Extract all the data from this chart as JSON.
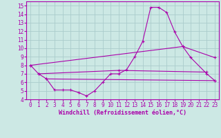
{
  "xlabel": "Windchill (Refroidissement éolien,°C)",
  "bg_color": "#cce8e4",
  "grid_color": "#aacccc",
  "line_color": "#aa00aa",
  "ylim": [
    4,
    15
  ],
  "yticks": [
    4,
    5,
    6,
    7,
    8,
    9,
    10,
    11,
    12,
    13,
    14,
    15
  ],
  "xticks": [
    0,
    1,
    2,
    3,
    4,
    5,
    6,
    7,
    8,
    9,
    10,
    11,
    12,
    13,
    14,
    15,
    16,
    17,
    18,
    19,
    20,
    21,
    22,
    23
  ],
  "line1_x": [
    0,
    1,
    2,
    3,
    4,
    5,
    6,
    7,
    8,
    9,
    10,
    11,
    12,
    13,
    14,
    15,
    16,
    17,
    18,
    19,
    20,
    22,
    23
  ],
  "line1_y": [
    8.0,
    7.0,
    6.4,
    5.1,
    5.1,
    5.1,
    4.8,
    4.4,
    5.0,
    6.0,
    7.0,
    7.0,
    7.5,
    9.0,
    10.8,
    14.8,
    14.8,
    14.2,
    11.9,
    10.2,
    8.9,
    7.0,
    6.2
  ],
  "line2_x": [
    0,
    19,
    23
  ],
  "line2_y": [
    8.0,
    10.2,
    8.9
  ],
  "line3_x": [
    1,
    11,
    22
  ],
  "line3_y": [
    7.0,
    7.4,
    7.2
  ],
  "line4_x": [
    2,
    23
  ],
  "line4_y": [
    6.4,
    6.2
  ]
}
